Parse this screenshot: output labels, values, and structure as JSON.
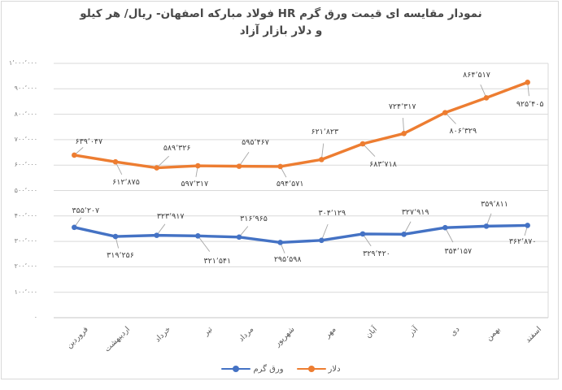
{
  "chart_data": {
    "type": "line",
    "title": "نمودار مقایسه ای قیمت ورق گرم HR فولاد مبارکه اصفهان- ریال/ هر کیلو و دلار بازار آزاد",
    "title_line1": "نمودار مقایسه ای قیمت ورق گرم HR فولاد مبارکه اصفهان- ریال/ هر کیلو",
    "title_line2": "و دلار بازار آزاد",
    "xlabel": "",
    "ylabel": "",
    "categories": [
      "فروردین",
      "اردیبهشت",
      "خرداد",
      "تیر",
      "مرداد",
      "شهریور",
      "مهر",
      "آبان",
      "آذر",
      "دی",
      "بهمن",
      "اسفند"
    ],
    "series": [
      {
        "name": "ورق گرم",
        "color": "#4472C4",
        "values": [
          355207,
          319256,
          323917,
          321541,
          316965,
          295598,
          304129,
          329420,
          327919,
          354157,
          359811,
          362870
        ],
        "labels": [
          "۳۵۵٬۲۰۷",
          "۳۱۹٬۲۵۶",
          "۳۲۳٬۹۱۷",
          "۳۲۱٬۵۴۱",
          "۳۱۶٬۹۶۵",
          "۲۹۵٬۵۹۸",
          "۳۰۴٬۱۲۹",
          "۳۲۹٬۴۲۰",
          "۳۲۷٬۹۱۹",
          "۳۵۴٬۱۵۷",
          "۳۵۹٬۸۱۱",
          "۳۶۲٬۸۷۰"
        ],
        "label_offsets": [
          [
            14,
            -20
          ],
          [
            6,
            24
          ],
          [
            17,
            -23
          ],
          [
            24,
            32
          ],
          [
            18,
            -22
          ],
          [
            9,
            22
          ],
          [
            13,
            -33
          ],
          [
            17,
            25
          ],
          [
            14,
            -26
          ],
          [
            16,
            30
          ],
          [
            10,
            -26
          ],
          [
            -6,
            21
          ]
        ]
      },
      {
        "name": "دلار",
        "color": "#ED7D31",
        "values": [
          639047,
          612875,
          589326,
          597317,
          595467,
          594571,
          621823,
          683718,
          724317,
          806329,
          864517,
          925405
        ],
        "labels": [
          "۶۳۹٬۰۴۷",
          "۶۱۲٬۸۷۵",
          "۵۸۹٬۳۲۶",
          "۵۹۷٬۳۱۷",
          "۵۹۵٬۴۶۷",
          "۵۹۴٬۵۷۱",
          "۶۲۱٬۸۲۳",
          "۶۸۳٬۷۱۸",
          "۷۲۴٬۳۱۷",
          "۸۰۶٬۳۲۹",
          "۸۶۴٬۵۱۷",
          "۹۲۵٬۴۰۵"
        ],
        "label_offsets": [
          [
            18,
            -16
          ],
          [
            13,
            26
          ],
          [
            25,
            -24
          ],
          [
            -4,
            23
          ],
          [
            20,
            -29
          ],
          [
            12,
            22
          ],
          [
            4,
            -33
          ],
          [
            25,
            26
          ],
          [
            -2,
            -32
          ],
          [
            22,
            23
          ],
          [
            -12,
            -27
          ],
          [
            3,
            28
          ]
        ]
      }
    ],
    "ylim": [
      0,
      1000000
    ],
    "ytick_step": 100000,
    "yticks": [
      0,
      100000,
      200000,
      300000,
      400000,
      500000,
      600000,
      700000,
      800000,
      900000,
      1000000
    ],
    "ytick_labels": [
      "۰",
      "۱۰۰٬۰۰۰",
      "۲۰۰٬۰۰۰",
      "۳۰۰٬۰۰۰",
      "۴۰۰٬۰۰۰",
      "۵۰۰٬۰۰۰",
      "۶۰۰٬۰۰۰",
      "۷۰۰٬۰۰۰",
      "۸۰۰٬۰۰۰",
      "۹۰۰٬۰۰۰",
      "۱٬۰۰۰٬۰۰۰"
    ],
    "grid": true,
    "legend_position": "bottom",
    "data_labels": true
  },
  "colors": {
    "gridline": "#d9d9d9",
    "axis_line": "#c6c6c6",
    "plot_border": "#d9d9d9",
    "leader_line": "#a6a6a6",
    "axis_text": "#7f7f7f",
    "label_text": "#404040",
    "title_text": "#484848",
    "background": "#ffffff"
  }
}
